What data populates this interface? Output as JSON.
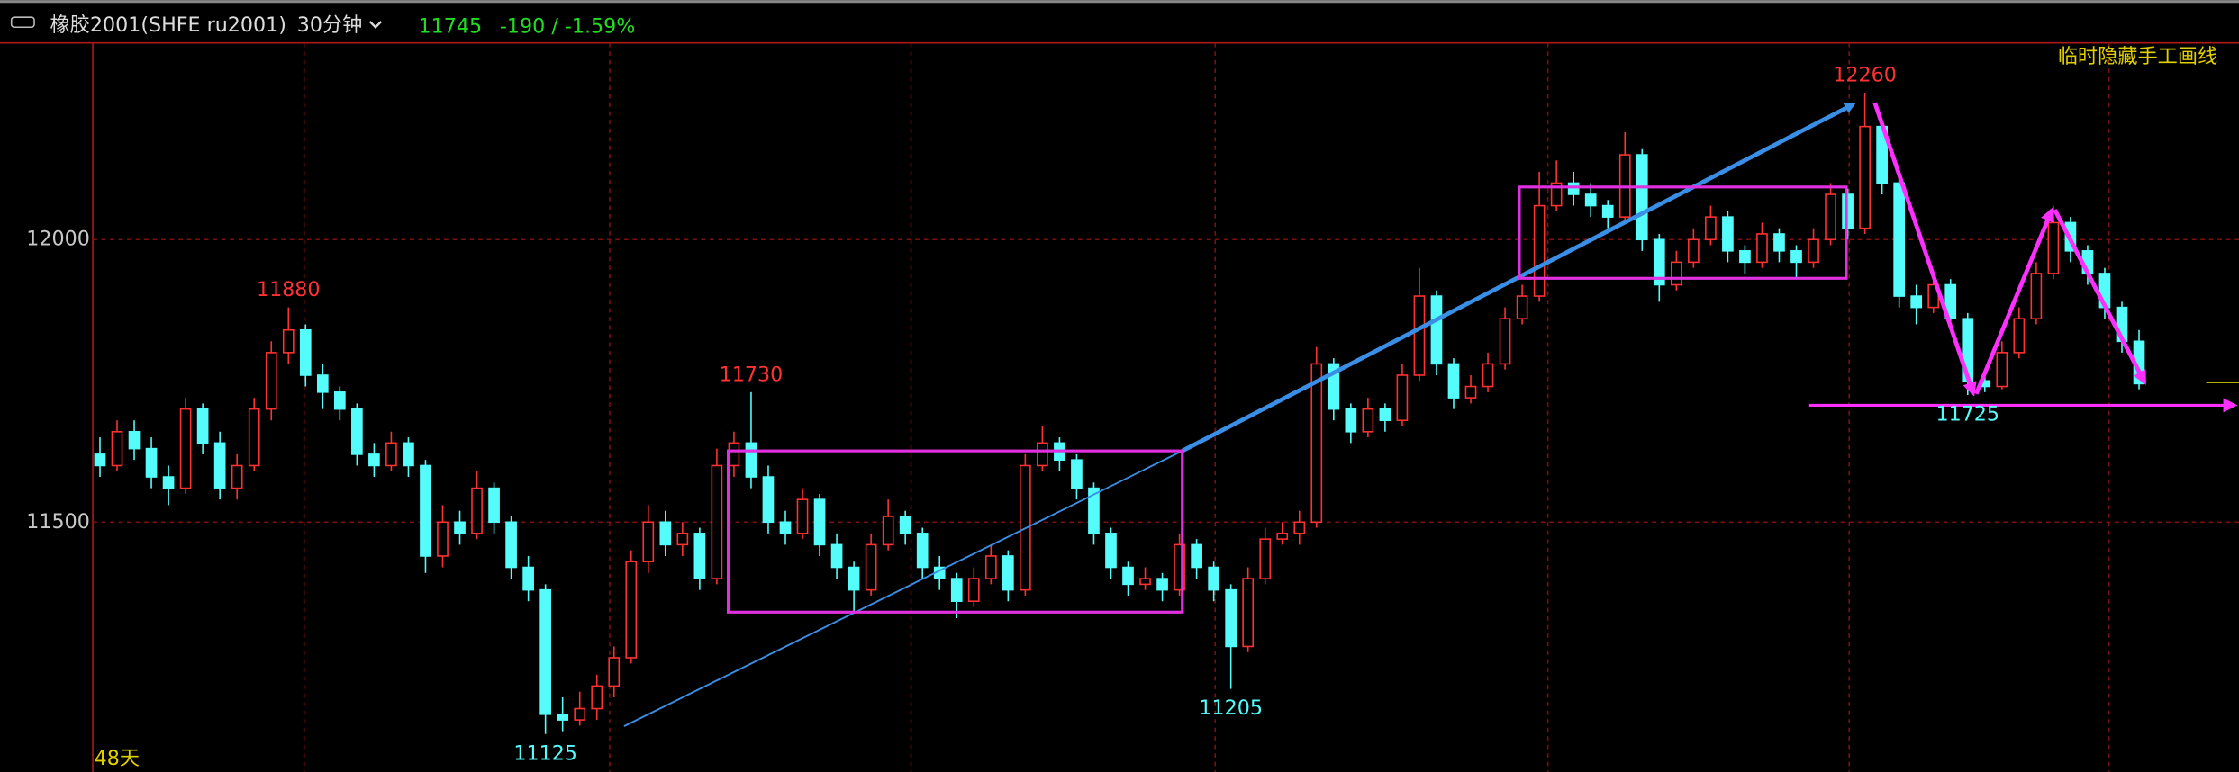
{
  "header": {
    "instrument": "橡胶2001(SHFE ru2001)",
    "period": "30分钟",
    "last": 11745,
    "change_text": "-190 / -1.59%",
    "hide_drawings": "临时隐藏手工画线"
  },
  "footer": {
    "days": "48天"
  },
  "chart_data": {
    "type": "candlestick",
    "up_color": "#ff3232",
    "down_color": "#54fcfc",
    "ylim": [
      11058,
      12348
    ],
    "yticks": [
      11500,
      12000
    ],
    "grid": true,
    "annotations": [
      11880,
      11730,
      11125,
      11205,
      12260,
      11725
    ],
    "ohlc": [
      [
        11620,
        11650,
        11580,
        11600
      ],
      [
        11600,
        11680,
        11590,
        11660
      ],
      [
        11660,
        11680,
        11610,
        11630
      ],
      [
        11630,
        11650,
        11560,
        11580
      ],
      [
        11580,
        11600,
        11530,
        11560
      ],
      [
        11560,
        11720,
        11550,
        11700
      ],
      [
        11700,
        11710,
        11620,
        11640
      ],
      [
        11640,
        11660,
        11540,
        11560
      ],
      [
        11560,
        11620,
        11540,
        11600
      ],
      [
        11600,
        11720,
        11590,
        11700
      ],
      [
        11700,
        11820,
        11680,
        11800
      ],
      [
        11800,
        11880,
        11780,
        11840
      ],
      [
        11840,
        11850,
        11740,
        11760
      ],
      [
        11760,
        11780,
        11700,
        11730
      ],
      [
        11730,
        11740,
        11680,
        11700
      ],
      [
        11700,
        11710,
        11600,
        11620
      ],
      [
        11620,
        11640,
        11580,
        11600
      ],
      [
        11600,
        11660,
        11590,
        11640
      ],
      [
        11640,
        11650,
        11580,
        11600
      ],
      [
        11600,
        11610,
        11410,
        11440
      ],
      [
        11440,
        11530,
        11420,
        11500
      ],
      [
        11500,
        11520,
        11460,
        11480
      ],
      [
        11480,
        11590,
        11470,
        11560
      ],
      [
        11560,
        11570,
        11480,
        11500
      ],
      [
        11500,
        11510,
        11400,
        11420
      ],
      [
        11420,
        11440,
        11360,
        11380
      ],
      [
        11380,
        11390,
        11125,
        11160
      ],
      [
        11160,
        11190,
        11130,
        11150
      ],
      [
        11150,
        11200,
        11140,
        11170
      ],
      [
        11170,
        11230,
        11150,
        11210
      ],
      [
        11210,
        11280,
        11190,
        11260
      ],
      [
        11260,
        11450,
        11250,
        11430
      ],
      [
        11430,
        11530,
        11410,
        11500
      ],
      [
        11500,
        11520,
        11440,
        11460
      ],
      [
        11460,
        11500,
        11440,
        11480
      ],
      [
        11480,
        11490,
        11380,
        11400
      ],
      [
        11400,
        11630,
        11390,
        11600
      ],
      [
        11600,
        11660,
        11580,
        11640
      ],
      [
        11640,
        11730,
        11560,
        11580
      ],
      [
        11580,
        11600,
        11480,
        11500
      ],
      [
        11500,
        11520,
        11460,
        11480
      ],
      [
        11480,
        11560,
        11470,
        11540
      ],
      [
        11540,
        11550,
        11440,
        11460
      ],
      [
        11460,
        11480,
        11400,
        11420
      ],
      [
        11420,
        11430,
        11340,
        11380
      ],
      [
        11380,
        11480,
        11370,
        11460
      ],
      [
        11460,
        11540,
        11450,
        11510
      ],
      [
        11510,
        11520,
        11460,
        11480
      ],
      [
        11480,
        11490,
        11400,
        11420
      ],
      [
        11420,
        11440,
        11380,
        11400
      ],
      [
        11400,
        11410,
        11330,
        11360
      ],
      [
        11360,
        11420,
        11350,
        11400
      ],
      [
        11400,
        11460,
        11390,
        11440
      ],
      [
        11440,
        11450,
        11360,
        11380
      ],
      [
        11380,
        11620,
        11370,
        11600
      ],
      [
        11600,
        11670,
        11590,
        11640
      ],
      [
        11640,
        11650,
        11590,
        11610
      ],
      [
        11610,
        11620,
        11540,
        11560
      ],
      [
        11560,
        11570,
        11460,
        11480
      ],
      [
        11480,
        11490,
        11400,
        11420
      ],
      [
        11420,
        11430,
        11370,
        11390
      ],
      [
        11390,
        11420,
        11380,
        11400
      ],
      [
        11400,
        11410,
        11360,
        11380
      ],
      [
        11380,
        11480,
        11370,
        11460
      ],
      [
        11460,
        11470,
        11400,
        11420
      ],
      [
        11420,
        11430,
        11360,
        11380
      ],
      [
        11380,
        11390,
        11205,
        11280
      ],
      [
        11280,
        11420,
        11270,
        11400
      ],
      [
        11400,
        11490,
        11390,
        11470
      ],
      [
        11470,
        11500,
        11460,
        11480
      ],
      [
        11480,
        11520,
        11460,
        11500
      ],
      [
        11500,
        11810,
        11490,
        11780
      ],
      [
        11780,
        11790,
        11680,
        11700
      ],
      [
        11700,
        11710,
        11640,
        11660
      ],
      [
        11660,
        11720,
        11650,
        11700
      ],
      [
        11700,
        11710,
        11660,
        11680
      ],
      [
        11680,
        11780,
        11670,
        11760
      ],
      [
        11760,
        11950,
        11750,
        11900
      ],
      [
        11900,
        11910,
        11760,
        11780
      ],
      [
        11780,
        11790,
        11700,
        11720
      ],
      [
        11720,
        11760,
        11710,
        11740
      ],
      [
        11740,
        11800,
        11730,
        11780
      ],
      [
        11780,
        11880,
        11770,
        11860
      ],
      [
        11860,
        11920,
        11850,
        11900
      ],
      [
        11900,
        12120,
        11890,
        12060
      ],
      [
        12060,
        12140,
        12050,
        12100
      ],
      [
        12100,
        12120,
        12060,
        12080
      ],
      [
        12080,
        12100,
        12040,
        12060
      ],
      [
        12060,
        12070,
        12020,
        12040
      ],
      [
        12040,
        12190,
        12030,
        12150
      ],
      [
        12150,
        12160,
        11980,
        12000
      ],
      [
        12000,
        12010,
        11890,
        11920
      ],
      [
        11920,
        11980,
        11910,
        11960
      ],
      [
        11960,
        12020,
        11950,
        12000
      ],
      [
        12000,
        12060,
        11990,
        12040
      ],
      [
        12040,
        12050,
        11960,
        11980
      ],
      [
        11980,
        11990,
        11940,
        11960
      ],
      [
        11960,
        12030,
        11950,
        12010
      ],
      [
        12010,
        12020,
        11960,
        11980
      ],
      [
        11980,
        11990,
        11930,
        11960
      ],
      [
        11960,
        12020,
        11950,
        12000
      ],
      [
        12000,
        12100,
        11990,
        12080
      ],
      [
        12080,
        12090,
        12000,
        12020
      ],
      [
        12020,
        12260,
        12010,
        12200
      ],
      [
        12200,
        12210,
        12080,
        12100
      ],
      [
        12100,
        12110,
        11880,
        11900
      ],
      [
        11900,
        11920,
        11850,
        11880
      ],
      [
        11880,
        11940,
        11870,
        11920
      ],
      [
        11920,
        11930,
        11840,
        11860
      ],
      [
        11860,
        11870,
        11725,
        11750
      ],
      [
        11750,
        11760,
        11730,
        11740
      ],
      [
        11740,
        11820,
        11735,
        11800
      ],
      [
        11800,
        11880,
        11790,
        11860
      ],
      [
        11860,
        11960,
        11850,
        11940
      ],
      [
        11940,
        12060,
        11930,
        12030
      ],
      [
        12030,
        12040,
        11960,
        11980
      ],
      [
        11980,
        11990,
        11920,
        11940
      ],
      [
        11940,
        11950,
        11860,
        11880
      ],
      [
        11880,
        11890,
        11800,
        11820
      ],
      [
        11820,
        11840,
        11735,
        11745
      ]
    ]
  }
}
